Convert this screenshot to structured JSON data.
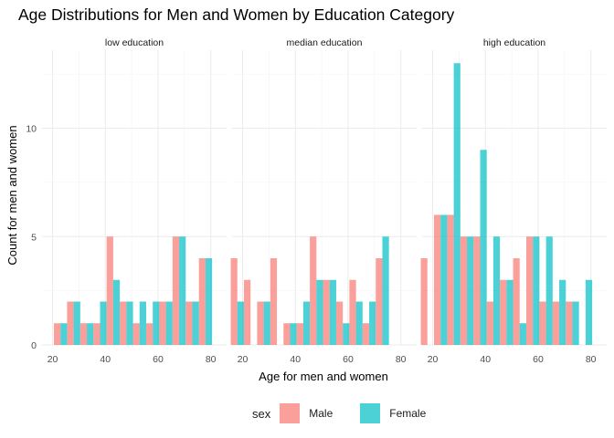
{
  "chart_data": {
    "type": "bar",
    "title": "Age Distributions for Men and Women by Education Category",
    "xlabel": "Age for men and women",
    "ylabel": "Count for men and women",
    "xlim": [
      16,
      86
    ],
    "ylim": [
      0,
      13.6
    ],
    "x_ticks": [
      20,
      40,
      60,
      80
    ],
    "y_ticks": [
      0,
      5,
      10
    ],
    "bin_width": 5,
    "grid": true,
    "legend_position": "bottom",
    "legend_title": "sex",
    "series": [
      {
        "name": "Male",
        "color": "#F8766D"
      },
      {
        "name": "Female",
        "color": "#00BFC4"
      }
    ],
    "panels": [
      {
        "label": "low education",
        "bins": [
          23,
          28,
          33,
          38,
          43,
          48,
          53,
          58,
          63,
          68,
          73,
          78
        ],
        "male": [
          1,
          2,
          1,
          1,
          5,
          2,
          1,
          1,
          2,
          5,
          2,
          4
        ],
        "female": [
          1,
          2,
          1,
          2,
          3,
          2,
          2,
          2,
          2,
          5,
          2,
          4
        ]
      },
      {
        "label": "median education",
        "bins": [
          18,
          23,
          28,
          33,
          38,
          43,
          48,
          53,
          58,
          63,
          68,
          73,
          78
        ],
        "male": [
          4,
          3,
          2,
          4,
          1,
          1,
          5,
          3,
          2,
          3,
          1,
          4,
          0
        ],
        "female": [
          2,
          0,
          2,
          0,
          1,
          2,
          3,
          3,
          1,
          2,
          2,
          5,
          0
        ]
      },
      {
        "label": "high education",
        "bins": [
          18,
          23,
          28,
          33,
          38,
          43,
          48,
          53,
          58,
          63,
          68,
          73,
          78
        ],
        "male": [
          4,
          6,
          6,
          5,
          5,
          2,
          3,
          4,
          5,
          2,
          2,
          2,
          0
        ],
        "female": [
          0,
          6,
          13,
          5,
          9,
          5,
          3,
          1,
          5,
          5,
          3,
          2,
          3
        ]
      }
    ]
  }
}
